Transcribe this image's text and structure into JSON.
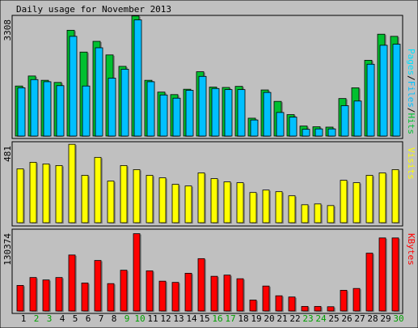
{
  "title": "Daily usage for November 2013",
  "colors": {
    "hits": "#00c030",
    "files": "#00c0ff",
    "pages": "#00e0ff",
    "visits": "#ffff00",
    "kbytes": "#ff0000",
    "weekend_label": "#00a000",
    "weekday_label": "#000000",
    "frame": "#ffffff",
    "shade": "#8c8c8c"
  },
  "icons": {
    "frame": "panel-frame"
  },
  "chart_data": [
    {
      "type": "bar",
      "panel": "top",
      "max_label": "3308",
      "legend": {
        "pages": "Pages",
        "files": "Files",
        "hits": "Hits",
        "sep": "/"
      },
      "categories": [
        "1",
        "2",
        "3",
        "4",
        "5",
        "6",
        "7",
        "8",
        "9",
        "10",
        "11",
        "12",
        "13",
        "14",
        "15",
        "16",
        "17",
        "18",
        "19",
        "20",
        "21",
        "22",
        "23",
        "24",
        "25",
        "26",
        "27",
        "28",
        "29",
        "30"
      ],
      "weekend_days": [
        "2",
        "3",
        "9",
        "10",
        "16",
        "17",
        "23",
        "24",
        "30"
      ],
      "ylim": [
        0,
        3308
      ],
      "series": [
        {
          "name": "Hits",
          "values": [
            1400,
            1680,
            1560,
            1500,
            2960,
            2350,
            2650,
            2270,
            1950,
            3360,
            1560,
            1230,
            1160,
            1310,
            1800,
            1370,
            1360,
            1390,
            500,
            1290,
            970,
            600,
            280,
            260,
            250,
            1050,
            1350,
            2120,
            2850,
            2790
          ]
        },
        {
          "name": "Files",
          "values": [
            1350,
            1580,
            1520,
            1410,
            2790,
            1400,
            2470,
            1620,
            1870,
            3250,
            1520,
            1150,
            1060,
            1280,
            1670,
            1330,
            1300,
            1300,
            450,
            1220,
            660,
            530,
            190,
            200,
            200,
            850,
            980,
            2010,
            2540,
            2570
          ]
        }
      ]
    },
    {
      "type": "bar",
      "panel": "middle",
      "max_label": "481",
      "legend": {
        "visits": "Visits"
      },
      "categories": [
        "1",
        "2",
        "3",
        "4",
        "5",
        "6",
        "7",
        "8",
        "9",
        "10",
        "11",
        "12",
        "13",
        "14",
        "15",
        "16",
        "17",
        "18",
        "19",
        "20",
        "21",
        "22",
        "23",
        "24",
        "25",
        "26",
        "27",
        "28",
        "29",
        "30"
      ],
      "ylim": [
        0,
        481
      ],
      "series": [
        {
          "name": "Visits",
          "values": [
            330,
            370,
            360,
            350,
            480,
            290,
            400,
            255,
            350,
            325,
            290,
            275,
            235,
            225,
            305,
            270,
            250,
            245,
            185,
            200,
            190,
            165,
            110,
            115,
            105,
            260,
            245,
            290,
            305,
            325
          ]
        }
      ]
    },
    {
      "type": "bar",
      "panel": "bottom",
      "max_label": "130374",
      "legend": {
        "kbytes": "KBytes"
      },
      "categories": [
        "1",
        "2",
        "3",
        "4",
        "5",
        "6",
        "7",
        "8",
        "9",
        "10",
        "11",
        "12",
        "13",
        "14",
        "15",
        "16",
        "17",
        "18",
        "19",
        "20",
        "21",
        "22",
        "23",
        "24",
        "25",
        "26",
        "27",
        "28",
        "29",
        "30"
      ],
      "ylim": [
        0,
        130374
      ],
      "series": [
        {
          "name": "KBytes",
          "values": [
            42000,
            55000,
            51000,
            55000,
            92000,
            46000,
            83000,
            45000,
            67000,
            127000,
            66000,
            49000,
            47000,
            62000,
            86000,
            57000,
            59000,
            53000,
            18000,
            41000,
            25000,
            23000,
            7500,
            7500,
            7000,
            34000,
            37000,
            95000,
            120000,
            120000
          ]
        }
      ]
    }
  ]
}
